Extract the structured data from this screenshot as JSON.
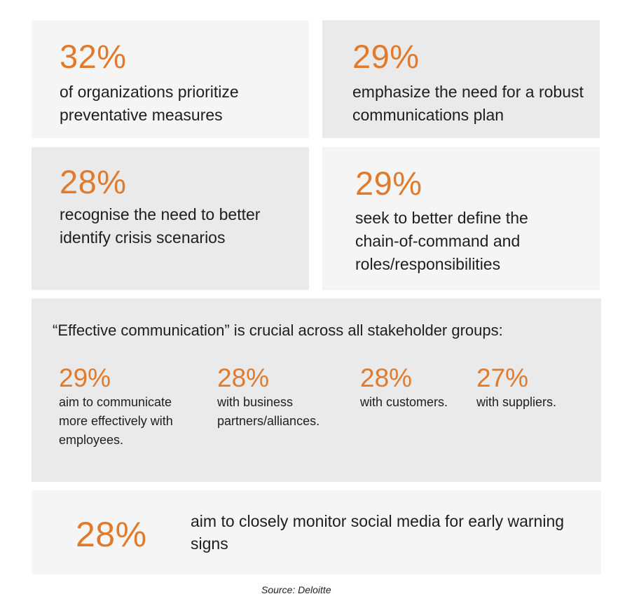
{
  "stats": [
    {
      "value": "32%",
      "desc": "of organizations prioritize preventative measures"
    },
    {
      "value": "29%",
      "desc": "emphasize the need for a robust communications plan"
    },
    {
      "value": "28%",
      "desc": "recognise the need to better identify crisis scenarios"
    },
    {
      "value": "29%",
      "desc": "seek to better define the chain-of-command and roles/responsibilities"
    }
  ],
  "communication": {
    "heading": "“Effective communication” is crucial across all stakeholder groups:",
    "items": [
      {
        "value": "29%",
        "desc": "aim to communicate more effectively with employees."
      },
      {
        "value": "28%",
        "desc": "with business partners/alliances."
      },
      {
        "value": "28%",
        "desc": "with customers."
      },
      {
        "value": "27%",
        "desc": "with suppliers."
      }
    ]
  },
  "social": {
    "value": "28%",
    "desc": "aim to closely monitor social media for early warning signs"
  },
  "source": "Source: Deloitte",
  "colors": {
    "accent": "#e07a2c",
    "panel_light": "#f5f5f5",
    "panel_dark": "#eaeaea"
  }
}
